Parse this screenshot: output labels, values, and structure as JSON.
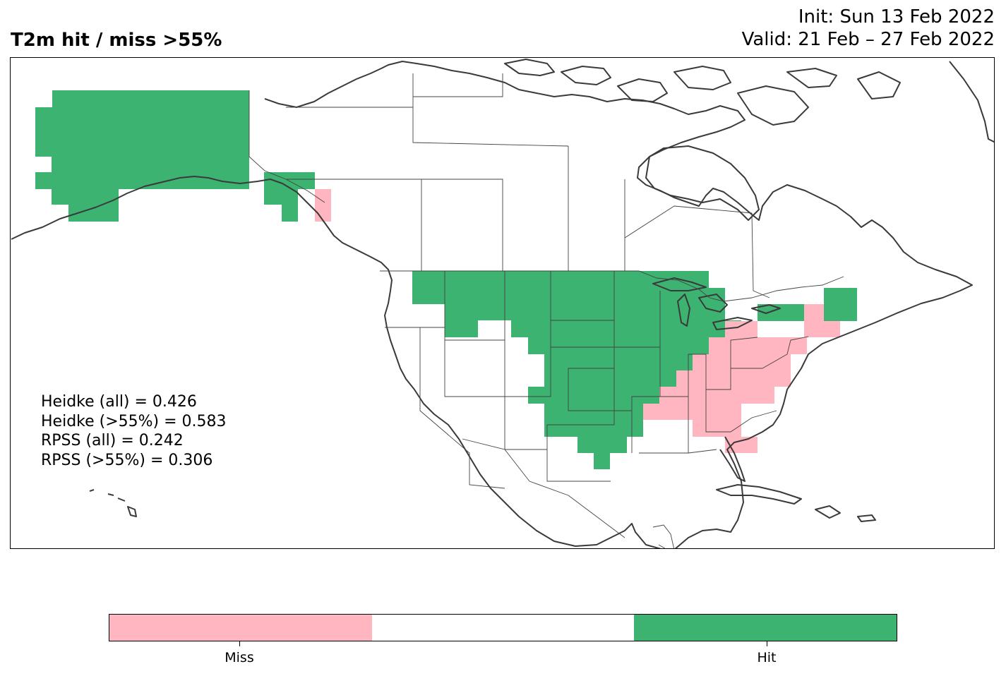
{
  "title": "T2m hit / miss  >55%",
  "init_line": "Init: Sun 13 Feb 2022",
  "valid_line": "Valid: 21 Feb – 27 Feb 2022",
  "stats": [
    "Heidke (all) = 0.426",
    "Heidke (>55%) = 0.583",
    "RPSS (all) = 0.242",
    "RPSS (>55%) = 0.306"
  ],
  "colors": {
    "hit": "#3cb371",
    "miss": "#ffb6c1",
    "neutral": "#ffffff",
    "coast": "#3a3a3a",
    "border": "#444444"
  },
  "colorbar": {
    "categories": [
      "Miss",
      "",
      "Hit"
    ],
    "tick_labels": [
      "Miss",
      "Hit"
    ]
  },
  "map_regions": {
    "hit": [
      "Alaska",
      "Yukon coast",
      "Northern and central plains",
      "Upper Midwest",
      "Great Lakes",
      "Texas",
      "Lower Mississippi valley",
      "Upstate New York",
      "Northern New England"
    ],
    "miss": [
      "Southeast Alaska panhandle",
      "Ohio valley",
      "Mid-Atlantic",
      "Southeast",
      "Florida",
      "Southern New England"
    ]
  }
}
